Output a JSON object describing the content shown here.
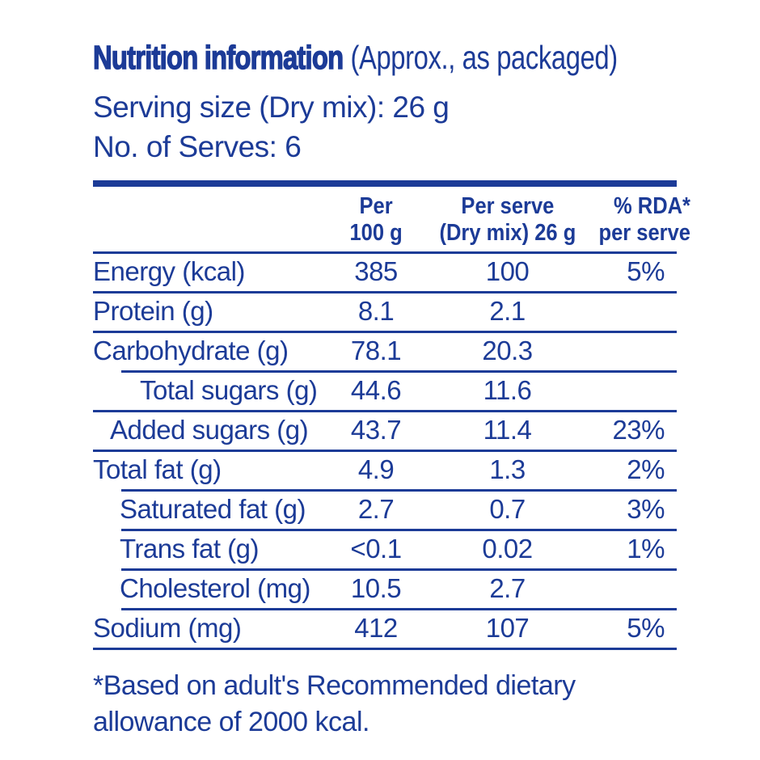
{
  "accent_color": "#1c3b97",
  "header": {
    "title": "Nutrition information",
    "title_suffix": "(Approx., as packaged)",
    "serving_size": "Serving size (Dry mix): 26 g",
    "serves": "No. of Serves: 6"
  },
  "table": {
    "columns": [
      {
        "line1": "Per",
        "line2": "100 g"
      },
      {
        "line1": "Per serve",
        "line2": "(Dry mix) 26 g"
      },
      {
        "line1": "% RDA*",
        "line2": "per serve"
      }
    ],
    "rows": [
      {
        "label": "Energy (kcal)",
        "per100": "385",
        "perServe": "100",
        "rda": "5%",
        "indent": 0,
        "sep": "full"
      },
      {
        "label": "Protein (g)",
        "per100": "8.1",
        "perServe": "2.1",
        "rda": "",
        "indent": 0,
        "sep": "full"
      },
      {
        "label": "Carbohydrate (g)",
        "per100": "78.1",
        "perServe": "20.3",
        "rda": "",
        "indent": 0,
        "sep": "indent"
      },
      {
        "label": "Total sugars (g)",
        "per100": "44.6",
        "perServe": "11.6",
        "rda": "",
        "indent": 3,
        "sep": "full"
      },
      {
        "label": "Added sugars (g)",
        "per100": "43.7",
        "perServe": "11.4",
        "rda": "23%",
        "indent": 1,
        "sep": "full"
      },
      {
        "label": "Total fat (g)",
        "per100": "4.9",
        "perServe": "1.3",
        "rda": "2%",
        "indent": 0,
        "sep": "indent"
      },
      {
        "label": "Saturated fat (g)",
        "per100": "2.7",
        "perServe": "0.7",
        "rda": "3%",
        "indent": 2,
        "sep": "indent"
      },
      {
        "label": "Trans fat (g)",
        "per100": "<0.1",
        "perServe": "0.02",
        "rda": "1%",
        "indent": 2,
        "sep": "indent"
      },
      {
        "label": "Cholesterol (mg)",
        "per100": "10.5",
        "perServe": "2.7",
        "rda": "",
        "indent": 2,
        "sep": "indent"
      },
      {
        "label": "Sodium (mg)",
        "per100": "412",
        "perServe": "107",
        "rda": "5%",
        "indent": 0,
        "sep": "full"
      }
    ]
  },
  "footnote": "*Based on adult's Recommended dietary allowance of 2000 kcal."
}
